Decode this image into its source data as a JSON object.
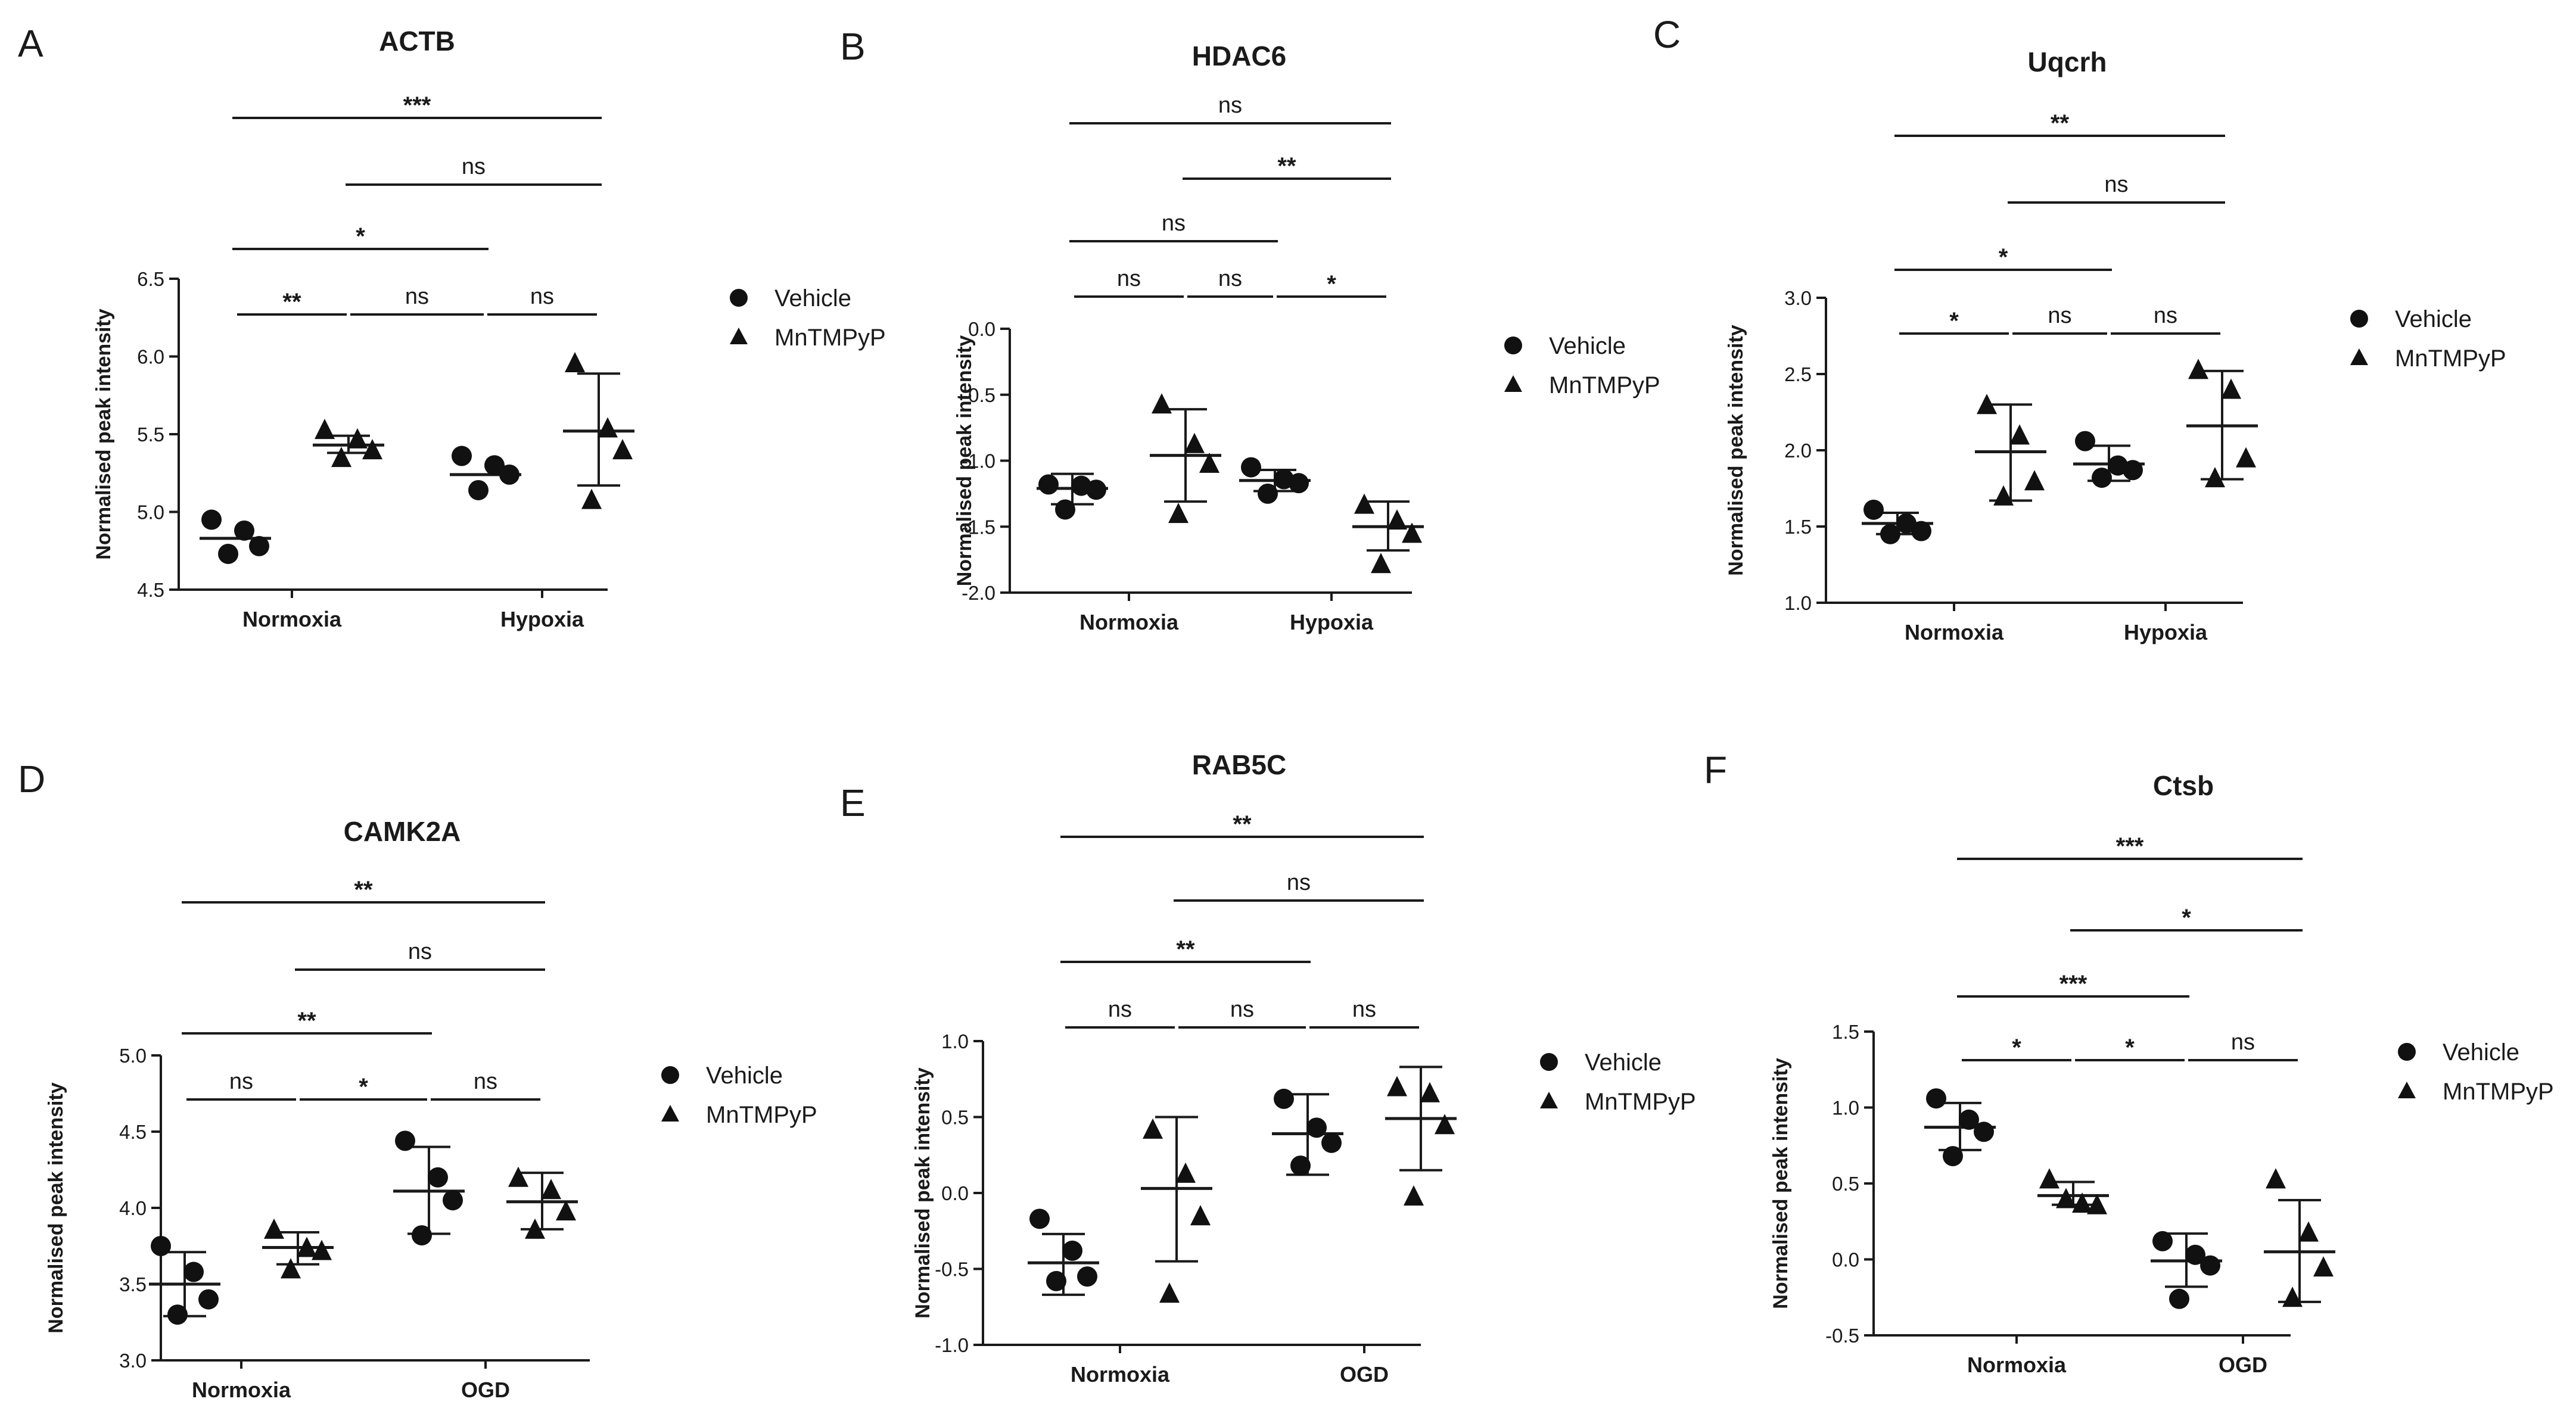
{
  "figure": {
    "legend": {
      "vehicle": "Vehicle",
      "treatment": "MnTMPyP"
    }
  },
  "chart_data": [
    {
      "type": "scatter",
      "panel": "A",
      "title": "ACTB",
      "ylabel": "Normalised peak intensity",
      "xlabel": "",
      "ylim": [
        4.5,
        6.5
      ],
      "yticks": [
        "4.5",
        "5.0",
        "5.5",
        "6.0",
        "6.5"
      ],
      "groups": [
        "Normoxia",
        "Hypoxia"
      ],
      "series": [
        {
          "name": "Normoxia Vehicle",
          "marker": "circle",
          "values": [
            4.95,
            4.88,
            4.78,
            4.73
          ],
          "mean": 4.83,
          "sd_low": 4.83,
          "sd_high": 4.83
        },
        {
          "name": "Normoxia MnTMPyP",
          "marker": "triangle",
          "values": [
            5.53,
            5.47,
            5.4,
            5.35
          ],
          "mean": 5.43,
          "sd_low": 5.38,
          "sd_high": 5.49
        },
        {
          "name": "Hypoxia Vehicle",
          "marker": "circle",
          "values": [
            5.36,
            5.3,
            5.24,
            5.14
          ],
          "mean": 5.24,
          "sd_low": 5.24,
          "sd_high": 5.24
        },
        {
          "name": "Hypoxia MnTMPyP",
          "marker": "triangle",
          "values": [
            5.96,
            5.54,
            5.4,
            5.08
          ],
          "mean": 5.52,
          "sd_low": 5.17,
          "sd_high": 5.89
        }
      ],
      "comparisons": [
        {
          "from": 0,
          "to": 1,
          "label": "**",
          "level": 1
        },
        {
          "from": 1,
          "to": 2,
          "label": "ns",
          "level": 1
        },
        {
          "from": 2,
          "to": 3,
          "label": "ns",
          "level": 1
        },
        {
          "from": 0,
          "to": 2,
          "label": "*",
          "level": 2
        },
        {
          "from": 1,
          "to": 3,
          "label": "ns",
          "level": 3
        },
        {
          "from": 0,
          "to": 3,
          "label": "***",
          "level": 4
        }
      ]
    },
    {
      "type": "scatter",
      "panel": "B",
      "title": "HDAC6",
      "ylabel": "Normalised peak intensity",
      "xlabel": "",
      "ylim": [
        -2.0,
        0.0
      ],
      "yticks": [
        "-2.0",
        "-1.5",
        "-1.0",
        "-0.5",
        "0.0"
      ],
      "groups": [
        "Normoxia",
        "Hypoxia"
      ],
      "series": [
        {
          "name": "Normoxia Vehicle",
          "marker": "circle",
          "values": [
            -1.18,
            -1.19,
            -1.22,
            -1.37
          ],
          "mean": -1.21,
          "sd_low": -1.33,
          "sd_high": -1.1
        },
        {
          "name": "Normoxia MnTMPyP",
          "marker": "triangle",
          "values": [
            -0.57,
            -0.87,
            -1.02,
            -1.4
          ],
          "mean": -0.96,
          "sd_low": -1.31,
          "sd_high": -0.61
        },
        {
          "name": "Hypoxia Vehicle",
          "marker": "circle",
          "values": [
            -1.05,
            -1.14,
            -1.17,
            -1.25
          ],
          "mean": -1.15,
          "sd_low": -1.23,
          "sd_high": -1.07
        },
        {
          "name": "Hypoxia MnTMPyP",
          "marker": "triangle",
          "values": [
            -1.33,
            -1.45,
            -1.55,
            -1.78
          ],
          "mean": -1.5,
          "sd_low": -1.68,
          "sd_high": -1.31
        }
      ],
      "comparisons": [
        {
          "from": 0,
          "to": 1,
          "label": "ns",
          "level": 1
        },
        {
          "from": 1,
          "to": 2,
          "label": "ns",
          "level": 1
        },
        {
          "from": 2,
          "to": 3,
          "label": "*",
          "level": 1
        },
        {
          "from": 0,
          "to": 2,
          "label": "ns",
          "level": 2
        },
        {
          "from": 1,
          "to": 3,
          "label": "**",
          "level": 3
        },
        {
          "from": 0,
          "to": 3,
          "label": "ns",
          "level": 4
        }
      ]
    },
    {
      "type": "scatter",
      "panel": "C",
      "title": "Uqcrh",
      "ylabel": "Normalised peak intensity",
      "xlabel": "",
      "ylim": [
        1.0,
        3.0
      ],
      "yticks": [
        "1.0",
        "1.5",
        "2.0",
        "2.5",
        "3.0"
      ],
      "groups": [
        "Normoxia",
        "Hypoxia"
      ],
      "series": [
        {
          "name": "Normoxia Vehicle",
          "marker": "circle",
          "values": [
            1.61,
            1.52,
            1.47,
            1.45
          ],
          "mean": 1.52,
          "sd_low": 1.45,
          "sd_high": 1.59
        },
        {
          "name": "Normoxia MnTMPyP",
          "marker": "triangle",
          "values": [
            2.3,
            2.1,
            1.8,
            1.7
          ],
          "mean": 1.99,
          "sd_low": 1.67,
          "sd_high": 2.3
        },
        {
          "name": "Hypoxia Vehicle",
          "marker": "circle",
          "values": [
            2.06,
            1.9,
            1.87,
            1.82
          ],
          "mean": 1.91,
          "sd_low": 1.8,
          "sd_high": 2.03
        },
        {
          "name": "Hypoxia MnTMPyP",
          "marker": "triangle",
          "values": [
            2.53,
            2.4,
            1.95,
            1.82
          ],
          "mean": 2.16,
          "sd_low": 1.81,
          "sd_high": 2.52
        }
      ],
      "comparisons": [
        {
          "from": 0,
          "to": 1,
          "label": "*",
          "level": 1
        },
        {
          "from": 1,
          "to": 2,
          "label": "ns",
          "level": 1
        },
        {
          "from": 2,
          "to": 3,
          "label": "ns",
          "level": 1
        },
        {
          "from": 0,
          "to": 2,
          "label": "*",
          "level": 2
        },
        {
          "from": 1,
          "to": 3,
          "label": "ns",
          "level": 3
        },
        {
          "from": 0,
          "to": 3,
          "label": "**",
          "level": 4
        }
      ]
    },
    {
      "type": "scatter",
      "panel": "D",
      "title": "CAMK2A",
      "ylabel": "Normalised peak intensity",
      "xlabel": "",
      "ylim": [
        3.0,
        5.0
      ],
      "yticks": [
        "3.0",
        "3.5",
        "4.0",
        "4.5",
        "5.0"
      ],
      "groups": [
        "Normoxia",
        "OGD"
      ],
      "series": [
        {
          "name": "Normoxia Vehicle",
          "marker": "circle",
          "values": [
            3.75,
            3.58,
            3.4,
            3.3
          ],
          "mean": 3.5,
          "sd_low": 3.29,
          "sd_high": 3.71
        },
        {
          "name": "Normoxia MnTMPyP",
          "marker": "triangle",
          "values": [
            3.86,
            3.74,
            3.72,
            3.6
          ],
          "mean": 3.74,
          "sd_low": 3.63,
          "sd_high": 3.84
        },
        {
          "name": "OGD Vehicle",
          "marker": "circle",
          "values": [
            4.44,
            4.2,
            4.05,
            3.82
          ],
          "mean": 4.11,
          "sd_low": 3.83,
          "sd_high": 4.4
        },
        {
          "name": "OGD MnTMPyP",
          "marker": "triangle",
          "values": [
            4.2,
            4.12,
            3.98,
            3.86
          ],
          "mean": 4.04,
          "sd_low": 3.86,
          "sd_high": 4.23
        }
      ],
      "comparisons": [
        {
          "from": 0,
          "to": 1,
          "label": "ns",
          "level": 1
        },
        {
          "from": 1,
          "to": 2,
          "label": "*",
          "level": 1
        },
        {
          "from": 2,
          "to": 3,
          "label": "ns",
          "level": 1
        },
        {
          "from": 0,
          "to": 2,
          "label": "**",
          "level": 2
        },
        {
          "from": 1,
          "to": 3,
          "label": "ns",
          "level": 3
        },
        {
          "from": 0,
          "to": 3,
          "label": "**",
          "level": 4
        }
      ]
    },
    {
      "type": "scatter",
      "panel": "E",
      "title": "RAB5C",
      "ylabel": "Normalised peak intensity",
      "xlabel": "",
      "ylim": [
        -1.0,
        1.0
      ],
      "yticks": [
        "-1.0",
        "-0.5",
        "0.0",
        "0.5",
        "1.0"
      ],
      "groups": [
        "Normoxia",
        "OGD"
      ],
      "series": [
        {
          "name": "Normoxia Vehicle",
          "marker": "circle",
          "values": [
            -0.17,
            -0.38,
            -0.55,
            -0.58
          ],
          "mean": -0.46,
          "sd_low": -0.67,
          "sd_high": -0.27
        },
        {
          "name": "Normoxia MnTMPyP",
          "marker": "triangle",
          "values": [
            0.42,
            0.13,
            -0.15,
            -0.66
          ],
          "mean": 0.03,
          "sd_low": -0.45,
          "sd_high": 0.5
        },
        {
          "name": "OGD Vehicle",
          "marker": "circle",
          "values": [
            0.62,
            0.43,
            0.33,
            0.18
          ],
          "mean": 0.39,
          "sd_low": 0.12,
          "sd_high": 0.65
        },
        {
          "name": "OGD MnTMPyP",
          "marker": "triangle",
          "values": [
            0.7,
            0.66,
            0.45,
            -0.02
          ],
          "mean": 0.49,
          "sd_low": 0.15,
          "sd_high": 0.83
        }
      ],
      "comparisons": [
        {
          "from": 0,
          "to": 1,
          "label": "ns",
          "level": 1
        },
        {
          "from": 1,
          "to": 2,
          "label": "ns",
          "level": 1
        },
        {
          "from": 2,
          "to": 3,
          "label": "ns",
          "level": 1
        },
        {
          "from": 0,
          "to": 2,
          "label": "**",
          "level": 2
        },
        {
          "from": 1,
          "to": 3,
          "label": "ns",
          "level": 3
        },
        {
          "from": 0,
          "to": 3,
          "label": "**",
          "level": 4
        }
      ]
    },
    {
      "type": "scatter",
      "panel": "F",
      "title": "Ctsb",
      "ylabel": "Normalised peak intensity",
      "xlabel": "",
      "ylim": [
        -0.5,
        1.5
      ],
      "yticks": [
        "-0.5",
        "0.0",
        "0.5",
        "1.0",
        "1.5"
      ],
      "groups": [
        "Normoxia",
        "OGD"
      ],
      "series": [
        {
          "name": "Normoxia Vehicle",
          "marker": "circle",
          "values": [
            1.06,
            0.92,
            0.84,
            0.68
          ],
          "mean": 0.87,
          "sd_low": 0.72,
          "sd_high": 1.03
        },
        {
          "name": "Normoxia MnTMPyP",
          "marker": "triangle",
          "values": [
            0.53,
            0.37,
            0.36,
            0.4
          ],
          "mean": 0.42,
          "sd_low": 0.36,
          "sd_high": 0.51
        },
        {
          "name": "OGD Vehicle",
          "marker": "circle",
          "values": [
            0.12,
            0.03,
            -0.04,
            -0.26
          ],
          "mean": -0.01,
          "sd_low": -0.18,
          "sd_high": 0.17
        },
        {
          "name": "OGD MnTMPyP",
          "marker": "triangle",
          "values": [
            0.53,
            0.18,
            -0.05,
            -0.25
          ],
          "mean": 0.05,
          "sd_low": -0.28,
          "sd_high": 0.39
        }
      ],
      "comparisons": [
        {
          "from": 0,
          "to": 1,
          "label": "*",
          "level": 1
        },
        {
          "from": 1,
          "to": 2,
          "label": "*",
          "level": 1
        },
        {
          "from": 2,
          "to": 3,
          "label": "ns",
          "level": 1
        },
        {
          "from": 0,
          "to": 2,
          "label": "***",
          "level": 2
        },
        {
          "from": 1,
          "to": 3,
          "label": "*",
          "level": 3
        },
        {
          "from": 0,
          "to": 3,
          "label": "***",
          "level": 4
        }
      ]
    }
  ]
}
